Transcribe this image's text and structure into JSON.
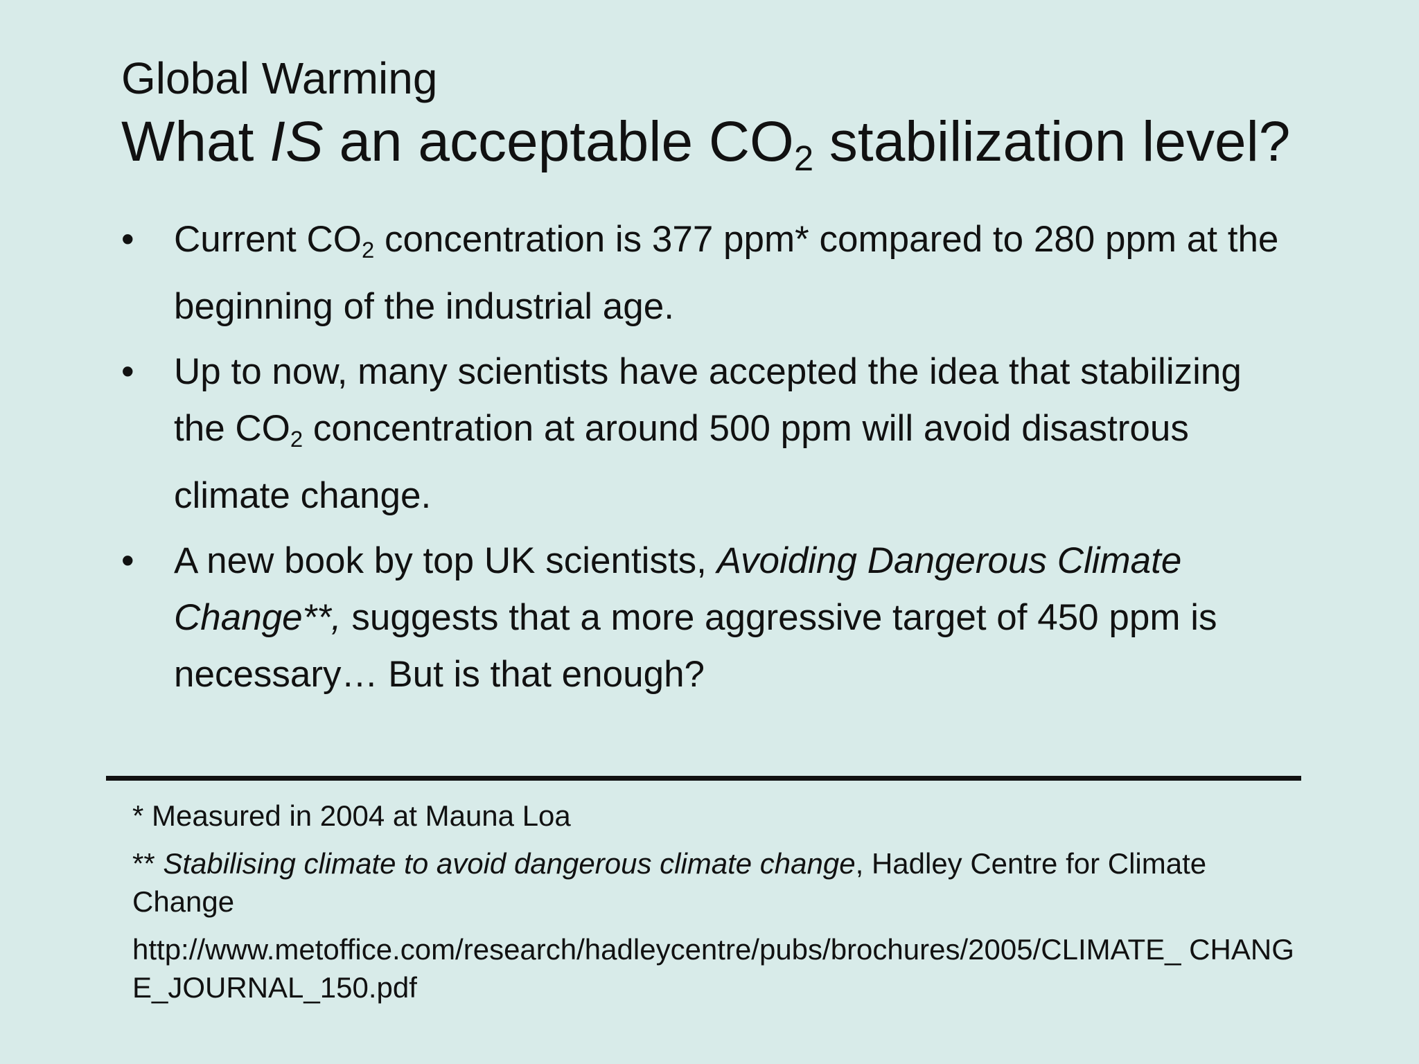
{
  "slide": {
    "subtitle": "Global Warming",
    "title": {
      "pre": "What ",
      "emph": "IS",
      "mid": " an acceptable CO",
      "sub": "2",
      "post": " stabilization level?"
    },
    "bullets": [
      {
        "mark": "•",
        "pre": "Current CO",
        "sub": "2",
        "post": " concentration is 377 ppm* compared to 280 ppm at the beginning of the industrial age."
      },
      {
        "mark": "•",
        "pre": "Up to now, many scientists have accepted the idea that stabilizing the CO",
        "sub": "2",
        "post": " concentration at around 500 ppm will avoid disastrous climate change."
      },
      {
        "mark": "•",
        "pre": "A new book by top UK scientists, ",
        "emph": "Avoiding Dangerous Climate Change**,",
        "post": " suggests that a more aggressive target of 450 ppm is necessary… But is that enough?"
      }
    ],
    "footnotes": {
      "note1": "*  Measured in 2004 at Mauna Loa",
      "note2_prefix": "** ",
      "note2_emph": "Stabilising climate to avoid dangerous climate change",
      "note2_suffix": ", Hadley Centre for Climate Change",
      "url": "http://www.metoffice.com/research/hadleycentre/pubs/brochures/2005/CLIMATE_ CHANGE_JOURNAL_150.pdf"
    }
  }
}
